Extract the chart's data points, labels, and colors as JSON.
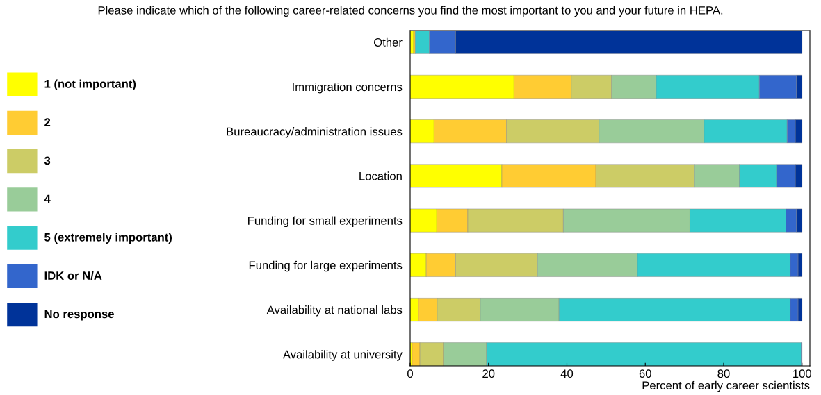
{
  "chart_data": {
    "type": "bar",
    "orientation": "horizontal",
    "stacked": true,
    "title": "Please indicate which of the following career-related concerns you find the most important to you and your future in HEPA.",
    "xlabel": "Percent of early career scientists",
    "categories": [
      "Other",
      "Immigration concerns",
      "Bureaucracy/administration issues",
      "Location",
      "Funding for small experiments",
      "Funding for large experiments",
      "Availability at national labs",
      "Availability at university"
    ],
    "series": [
      {
        "name": "1 (not important)",
        "color": "#ffff00",
        "values": [
          0.9,
          26.5,
          6.1,
          23.4,
          6.8,
          4.1,
          2.1,
          0.5
        ]
      },
      {
        "name": "2",
        "color": "#ffcc33",
        "values": [
          0.4,
          14.6,
          18.5,
          24.0,
          7.9,
          7.5,
          4.8,
          2.0
        ]
      },
      {
        "name": "3",
        "color": "#cccc66",
        "values": [
          0,
          10.3,
          23.6,
          25.2,
          24.4,
          20.9,
          11.0,
          6.0
        ]
      },
      {
        "name": "4",
        "color": "#99cc99",
        "values": [
          0,
          11.4,
          26.8,
          11.4,
          32.3,
          25.5,
          20.1,
          11.0
        ]
      },
      {
        "name": "5 (extremely important)",
        "color": "#33cccc",
        "values": [
          3.6,
          26.3,
          21.2,
          9.5,
          24.5,
          39.0,
          59.0,
          80.3
        ]
      },
      {
        "name": "IDK or N/A",
        "color": "#3366cc",
        "values": [
          6.7,
          9.5,
          2.1,
          4.8,
          2.7,
          2.0,
          2.0,
          0.2
        ]
      },
      {
        "name": "No response",
        "color": "#003399",
        "values": [
          88.4,
          1.4,
          1.7,
          1.7,
          1.4,
          1.0,
          1.0,
          0
        ]
      }
    ],
    "xlim": [
      0,
      102
    ],
    "xticks": [
      0,
      20,
      40,
      60,
      80,
      100
    ],
    "grid": false,
    "legend": "left"
  }
}
